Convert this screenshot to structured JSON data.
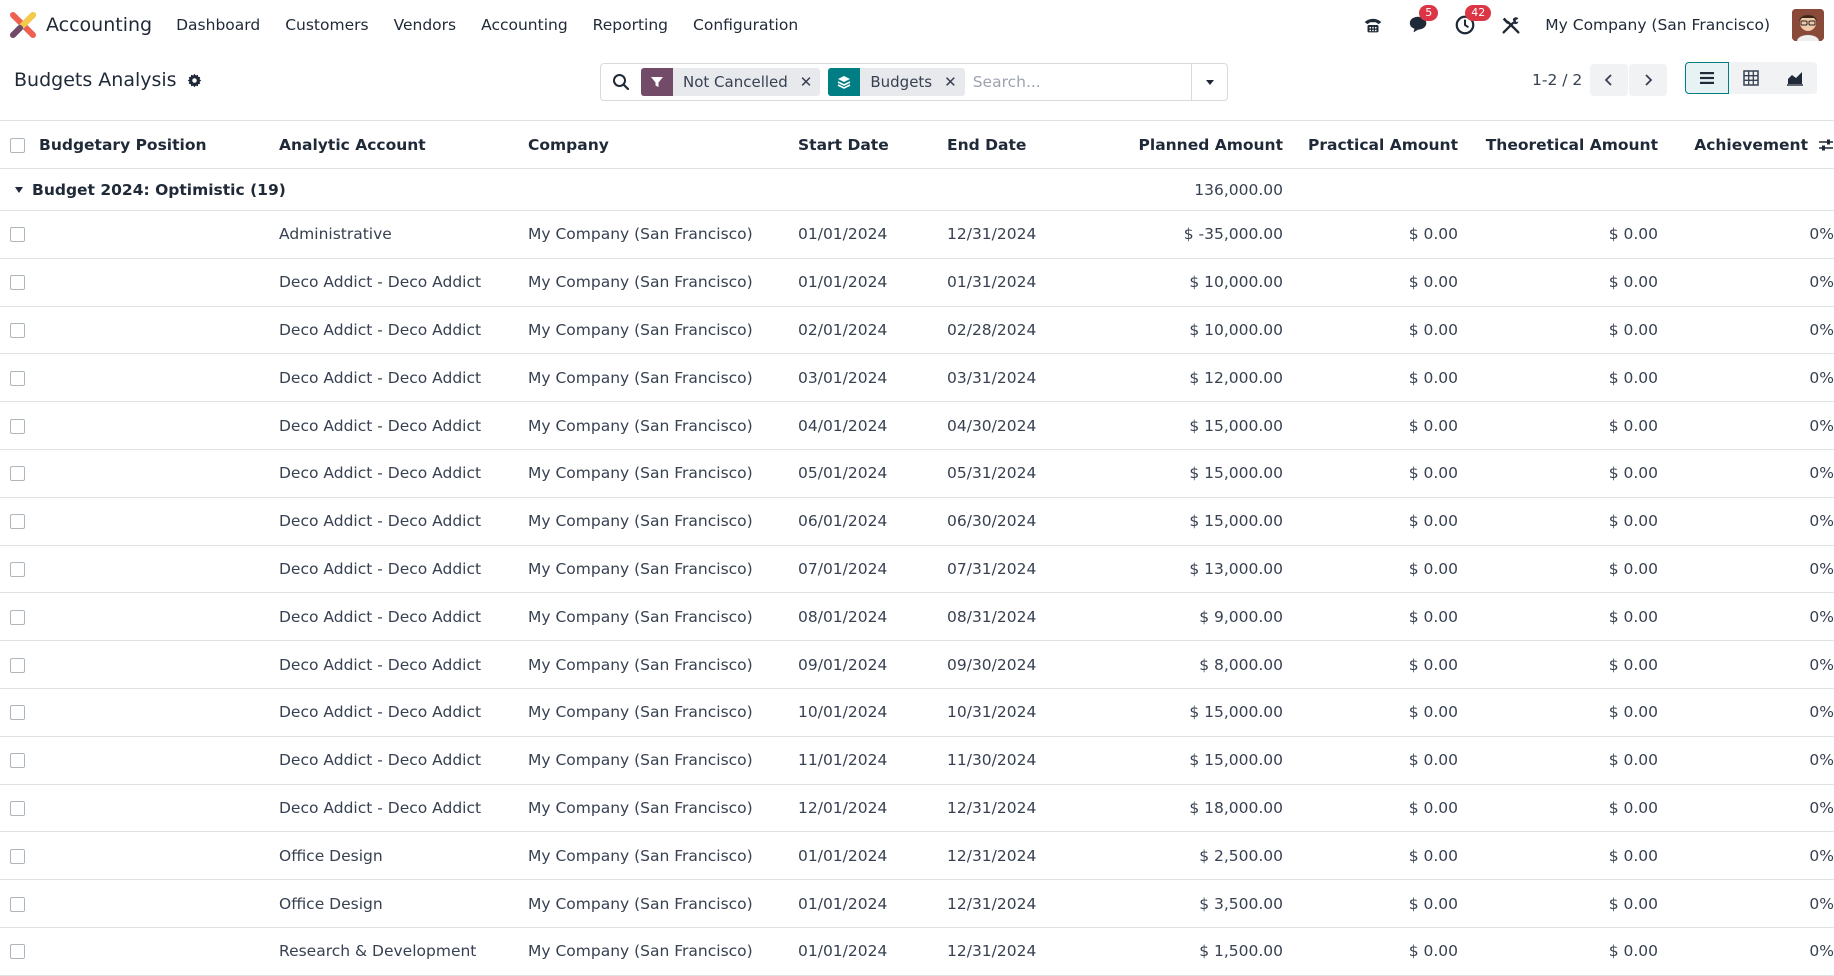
{
  "nav": {
    "app_name": "Accounting",
    "menu": [
      "Dashboard",
      "Customers",
      "Vendors",
      "Accounting",
      "Reporting",
      "Configuration"
    ],
    "messages_badge": "5",
    "activities_badge": "42",
    "company": "My Company (San Francisco)",
    "icons": [
      "phone-icon",
      "chat-icon",
      "clock-icon",
      "tools-icon"
    ]
  },
  "control": {
    "title": "Budgets Analysis",
    "facets": [
      {
        "label": "Not Cancelled",
        "icon": "filter-icon",
        "color": "#714b67"
      },
      {
        "label": "Budgets",
        "icon": "layers-icon",
        "color": "#017e84"
      }
    ],
    "search_placeholder": "Search...",
    "pager": "1-2 / 2",
    "views": [
      "list",
      "pivot",
      "graph"
    ],
    "active_view": "list"
  },
  "table": {
    "columns": [
      "Budgetary Position",
      "Analytic Account",
      "Company",
      "Start Date",
      "End Date",
      "Planned Amount",
      "Practical Amount",
      "Theoretical Amount",
      "Achievement"
    ],
    "group": {
      "label": "Budget 2024: Optimistic (19)",
      "planned_total": "136,000.00"
    },
    "rows": [
      {
        "position": "",
        "account": "Administrative",
        "company": "My Company (San Francisco)",
        "start": "01/01/2024",
        "end": "12/31/2024",
        "planned": "$ -35,000.00",
        "practical": "$ 0.00",
        "theoretical": "$ 0.00",
        "achievement": "0%"
      },
      {
        "position": "",
        "account": "Deco Addict - Deco Addict",
        "company": "My Company (San Francisco)",
        "start": "01/01/2024",
        "end": "01/31/2024",
        "planned": "$ 10,000.00",
        "practical": "$ 0.00",
        "theoretical": "$ 0.00",
        "achievement": "0%"
      },
      {
        "position": "",
        "account": "Deco Addict - Deco Addict",
        "company": "My Company (San Francisco)",
        "start": "02/01/2024",
        "end": "02/28/2024",
        "planned": "$ 10,000.00",
        "practical": "$ 0.00",
        "theoretical": "$ 0.00",
        "achievement": "0%"
      },
      {
        "position": "",
        "account": "Deco Addict - Deco Addict",
        "company": "My Company (San Francisco)",
        "start": "03/01/2024",
        "end": "03/31/2024",
        "planned": "$ 12,000.00",
        "practical": "$ 0.00",
        "theoretical": "$ 0.00",
        "achievement": "0%"
      },
      {
        "position": "",
        "account": "Deco Addict - Deco Addict",
        "company": "My Company (San Francisco)",
        "start": "04/01/2024",
        "end": "04/30/2024",
        "planned": "$ 15,000.00",
        "practical": "$ 0.00",
        "theoretical": "$ 0.00",
        "achievement": "0%"
      },
      {
        "position": "",
        "account": "Deco Addict - Deco Addict",
        "company": "My Company (San Francisco)",
        "start": "05/01/2024",
        "end": "05/31/2024",
        "planned": "$ 15,000.00",
        "practical": "$ 0.00",
        "theoretical": "$ 0.00",
        "achievement": "0%"
      },
      {
        "position": "",
        "account": "Deco Addict - Deco Addict",
        "company": "My Company (San Francisco)",
        "start": "06/01/2024",
        "end": "06/30/2024",
        "planned": "$ 15,000.00",
        "practical": "$ 0.00",
        "theoretical": "$ 0.00",
        "achievement": "0%"
      },
      {
        "position": "",
        "account": "Deco Addict - Deco Addict",
        "company": "My Company (San Francisco)",
        "start": "07/01/2024",
        "end": "07/31/2024",
        "planned": "$ 13,000.00",
        "practical": "$ 0.00",
        "theoretical": "$ 0.00",
        "achievement": "0%"
      },
      {
        "position": "",
        "account": "Deco Addict - Deco Addict",
        "company": "My Company (San Francisco)",
        "start": "08/01/2024",
        "end": "08/31/2024",
        "planned": "$ 9,000.00",
        "practical": "$ 0.00",
        "theoretical": "$ 0.00",
        "achievement": "0%"
      },
      {
        "position": "",
        "account": "Deco Addict - Deco Addict",
        "company": "My Company (San Francisco)",
        "start": "09/01/2024",
        "end": "09/30/2024",
        "planned": "$ 8,000.00",
        "practical": "$ 0.00",
        "theoretical": "$ 0.00",
        "achievement": "0%"
      },
      {
        "position": "",
        "account": "Deco Addict - Deco Addict",
        "company": "My Company (San Francisco)",
        "start": "10/01/2024",
        "end": "10/31/2024",
        "planned": "$ 15,000.00",
        "practical": "$ 0.00",
        "theoretical": "$ 0.00",
        "achievement": "0%"
      },
      {
        "position": "",
        "account": "Deco Addict - Deco Addict",
        "company": "My Company (San Francisco)",
        "start": "11/01/2024",
        "end": "11/30/2024",
        "planned": "$ 15,000.00",
        "practical": "$ 0.00",
        "theoretical": "$ 0.00",
        "achievement": "0%"
      },
      {
        "position": "",
        "account": "Deco Addict - Deco Addict",
        "company": "My Company (San Francisco)",
        "start": "12/01/2024",
        "end": "12/31/2024",
        "planned": "$ 18,000.00",
        "practical": "$ 0.00",
        "theoretical": "$ 0.00",
        "achievement": "0%"
      },
      {
        "position": "",
        "account": "Office Design",
        "company": "My Company (San Francisco)",
        "start": "01/01/2024",
        "end": "12/31/2024",
        "planned": "$ 2,500.00",
        "practical": "$ 0.00",
        "theoretical": "$ 0.00",
        "achievement": "0%"
      },
      {
        "position": "",
        "account": "Office Design",
        "company": "My Company (San Francisco)",
        "start": "01/01/2024",
        "end": "12/31/2024",
        "planned": "$ 3,500.00",
        "practical": "$ 0.00",
        "theoretical": "$ 0.00",
        "achievement": "0%"
      },
      {
        "position": "",
        "account": "Research & Development",
        "company": "My Company (San Francisco)",
        "start": "01/01/2024",
        "end": "12/31/2024",
        "planned": "$ 1,500.00",
        "practical": "$ 0.00",
        "theoretical": "$ 0.00",
        "achievement": "0%"
      }
    ]
  }
}
